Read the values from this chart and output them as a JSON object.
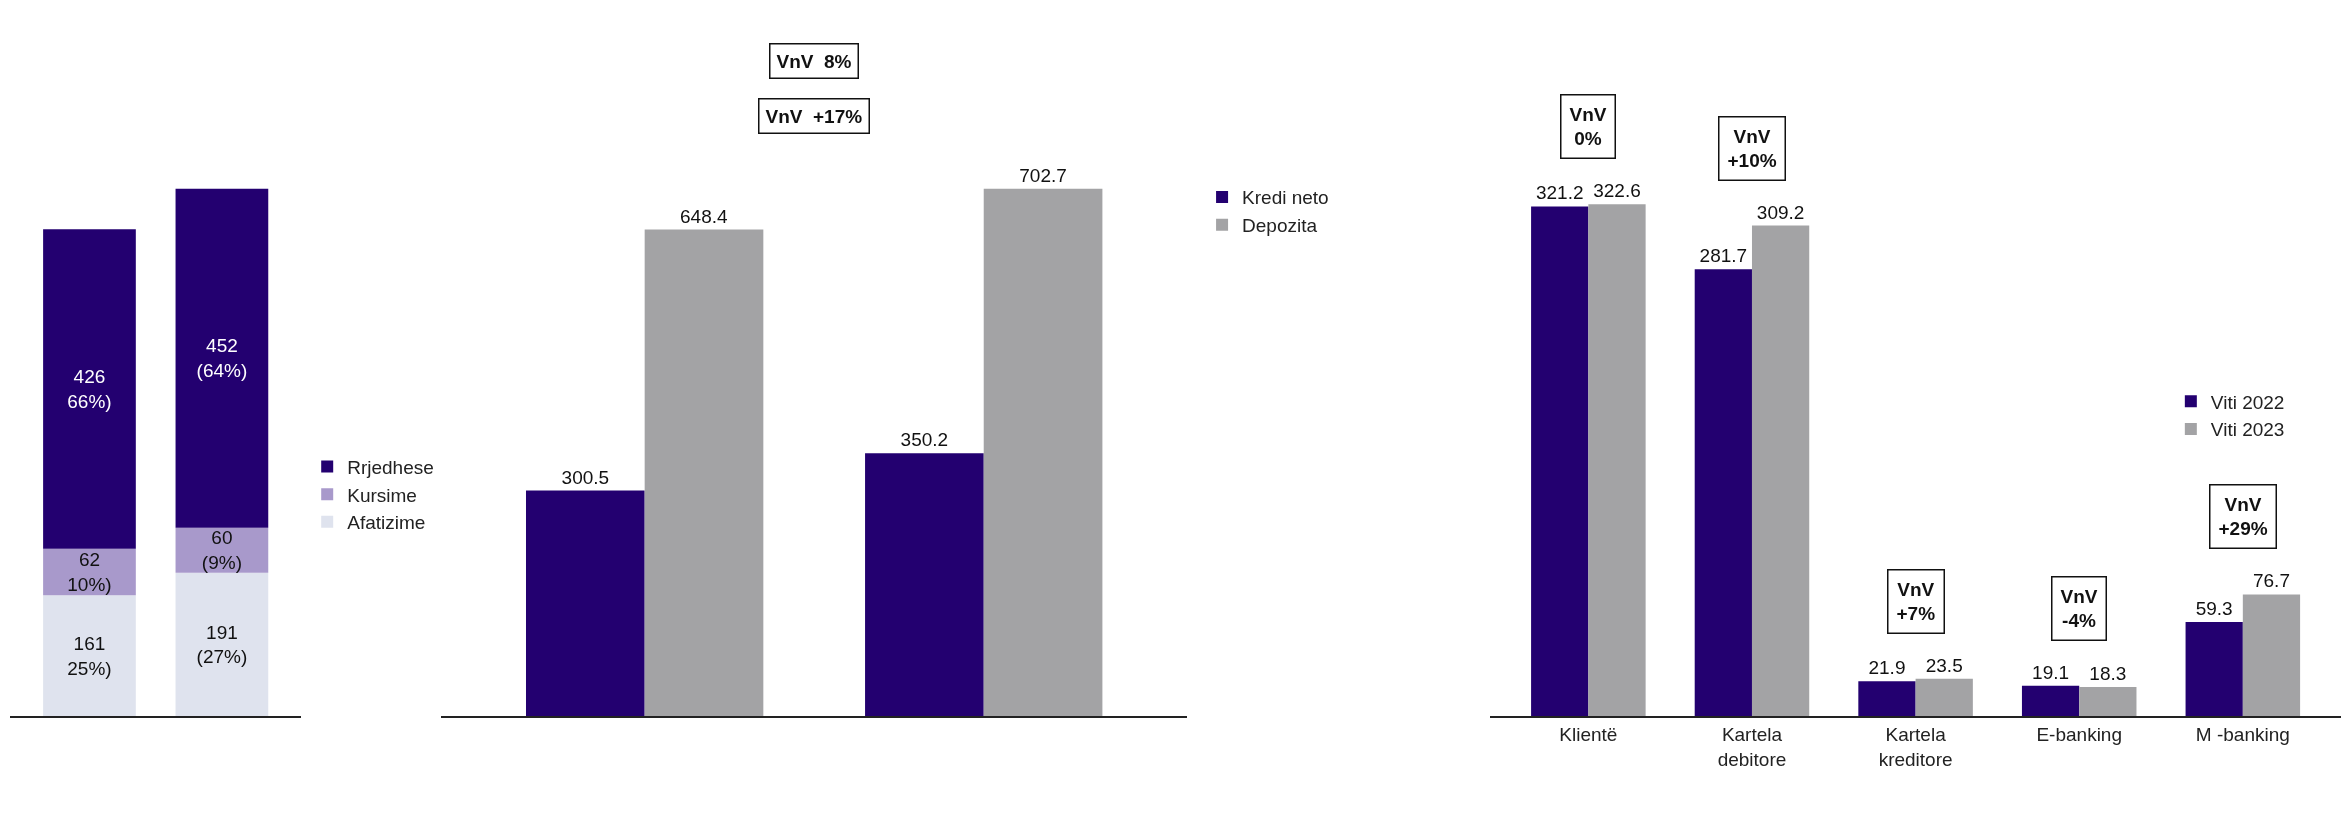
{
  "chart_data": [
    {
      "type": "bar",
      "stacked": true,
      "categories": [
        null,
        null
      ],
      "legend": "right",
      "series": [
        {
          "name": "Afatizime",
          "color": "#dfe3ee",
          "values": [
            161,
            191
          ],
          "value_labels": [
            "161\n25%)",
            "191\n(27%)"
          ]
        },
        {
          "name": "Kursime",
          "color": "#a899cb",
          "values": [
            62,
            60
          ],
          "value_labels": [
            "62\n10%)",
            "60\n(9%)"
          ]
        },
        {
          "name": "Rrjedhese",
          "color": "#230070",
          "values": [
            426,
            452
          ],
          "value_labels": [
            "426\n66%)",
            "452\n(64%)"
          ]
        }
      ]
    },
    {
      "type": "bar",
      "categories": [
        null,
        null
      ],
      "legend": "top right",
      "data_labels": true,
      "annotations": [
        "VnV  8%",
        "VnV  +17%"
      ],
      "series": [
        {
          "name": "Kredi neto",
          "color": "#230070",
          "values": [
            300.5,
            350.2
          ]
        },
        {
          "name": "Depozita",
          "color": "#a3a3a5",
          "values": [
            648.4,
            702.7
          ]
        }
      ]
    },
    {
      "type": "bar",
      "categories": [
        "Klientë",
        "Kartela\ndebitore",
        "Kartela\nkreditore",
        "E-banking",
        "M -banking"
      ],
      "legend": "right",
      "data_labels": true,
      "annotations": [
        "VnV\n0%",
        "VnV\n+10%",
        "VnV\n+7%",
        "VnV\n-4%",
        "VnV\n+29%"
      ],
      "series": [
        {
          "name": "Viti 2022",
          "color": "#230070",
          "values": [
            321.2,
            281.7,
            21.9,
            19.1,
            59.3
          ]
        },
        {
          "name": "Viti 2023",
          "color": "#a3a3a5",
          "values": [
            322.6,
            309.2,
            23.5,
            18.3,
            76.7
          ]
        }
      ]
    }
  ]
}
